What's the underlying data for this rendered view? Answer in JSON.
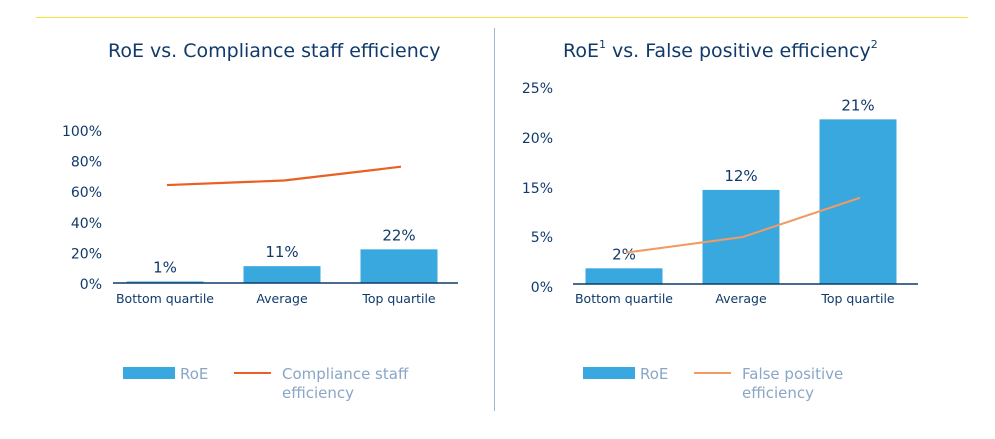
{
  "colors": {
    "bar": "#38a8df",
    "line_left": "#ea5f22",
    "line_right": "#f29a63",
    "axis": "#0f3a6b",
    "title": "#0f3a6b",
    "legend_text": "#8aa6c6",
    "top_rule": "#f2e33a",
    "divider": "#9fb8d3"
  },
  "chart_data": [
    {
      "type": "bar",
      "title": "RoE vs. Compliance staff efficiency",
      "title_sup": "",
      "title_sup2": "",
      "categories": [
        "Bottom quartile",
        "Average",
        "Top quartile"
      ],
      "series": [
        {
          "name": "RoE",
          "kind": "bar",
          "values": [
            1,
            11,
            22
          ],
          "labels": [
            "1%",
            "11%",
            "22%"
          ]
        },
        {
          "name": "Compliance staff efficiency",
          "kind": "line",
          "values": [
            64,
            67,
            76
          ]
        }
      ],
      "yticks": [
        "0%",
        "20%",
        "40%",
        "60%",
        "80%",
        "100%"
      ],
      "ytick_values": [
        0,
        20,
        40,
        60,
        80,
        100
      ],
      "ylim": [
        0,
        100
      ],
      "xlabel": "",
      "ylabel": "",
      "grid": false,
      "legend": {
        "position": "bottom",
        "items": [
          {
            "kind": "bar",
            "label_lines": [
              "RoE"
            ]
          },
          {
            "kind": "line",
            "label_lines": [
              "Compliance staff",
              "efficiency"
            ]
          }
        ]
      }
    },
    {
      "type": "bar",
      "title": "RoE",
      "title_sup": "1",
      "title_mid": " vs. False positive efficiency",
      "title_sup2": "2",
      "categories": [
        "Bottom quartile",
        "Average",
        "Top quartile"
      ],
      "series": [
        {
          "name": "RoE",
          "kind": "bar",
          "values": [
            2,
            12,
            21
          ],
          "labels": [
            "2%",
            "12%",
            "21%"
          ]
        },
        {
          "name": "False positive efficiency",
          "kind": "line",
          "values": [
            4,
            6,
            11
          ]
        }
      ],
      "yticks": [
        "0%",
        "5%",
        "15%",
        "20%",
        "25%"
      ],
      "ytick_note": "tick labels printed at evenly spaced positions",
      "ylim": [
        0,
        25
      ],
      "xlabel": "",
      "ylabel": "",
      "grid": false,
      "legend": {
        "position": "bottom",
        "items": [
          {
            "kind": "bar",
            "label_lines": [
              "RoE"
            ]
          },
          {
            "kind": "line",
            "label_lines": [
              "False positive",
              "efficiency"
            ]
          }
        ]
      }
    }
  ]
}
